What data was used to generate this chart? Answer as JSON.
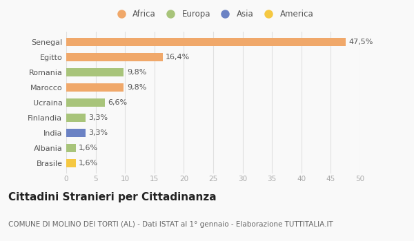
{
  "categories": [
    "Brasile",
    "Albania",
    "India",
    "Finlandia",
    "Ucraina",
    "Marocco",
    "Romania",
    "Egitto",
    "Senegal"
  ],
  "values": [
    1.6,
    1.6,
    3.3,
    3.3,
    6.6,
    9.8,
    9.8,
    16.4,
    47.5
  ],
  "labels": [
    "1,6%",
    "1,6%",
    "3,3%",
    "3,3%",
    "6,6%",
    "9,8%",
    "9,8%",
    "16,4%",
    "47,5%"
  ],
  "colors": [
    "#F5C842",
    "#A8C47A",
    "#6B82C4",
    "#A8C47A",
    "#A8C47A",
    "#F0A86A",
    "#A8C47A",
    "#F0A86A",
    "#F0A86A"
  ],
  "legend_labels": [
    "Africa",
    "Europa",
    "Asia",
    "America"
  ],
  "legend_colors": [
    "#F0A86A",
    "#A8C47A",
    "#6B82C4",
    "#F5C842"
  ],
  "xlim": [
    0,
    50
  ],
  "xticks": [
    0,
    5,
    10,
    15,
    20,
    25,
    30,
    35,
    40,
    45,
    50
  ],
  "title": "Cittadini Stranieri per Cittadinanza",
  "subtitle": "COMUNE DI MOLINO DEI TORTI (AL) - Dati ISTAT al 1° gennaio - Elaborazione TUTTITALIA.IT",
  "bg_color": "#f9f9f9",
  "grid_color": "#e0e0e0",
  "bar_height": 0.55,
  "label_fontsize": 8,
  "title_fontsize": 11,
  "subtitle_fontsize": 7.5
}
